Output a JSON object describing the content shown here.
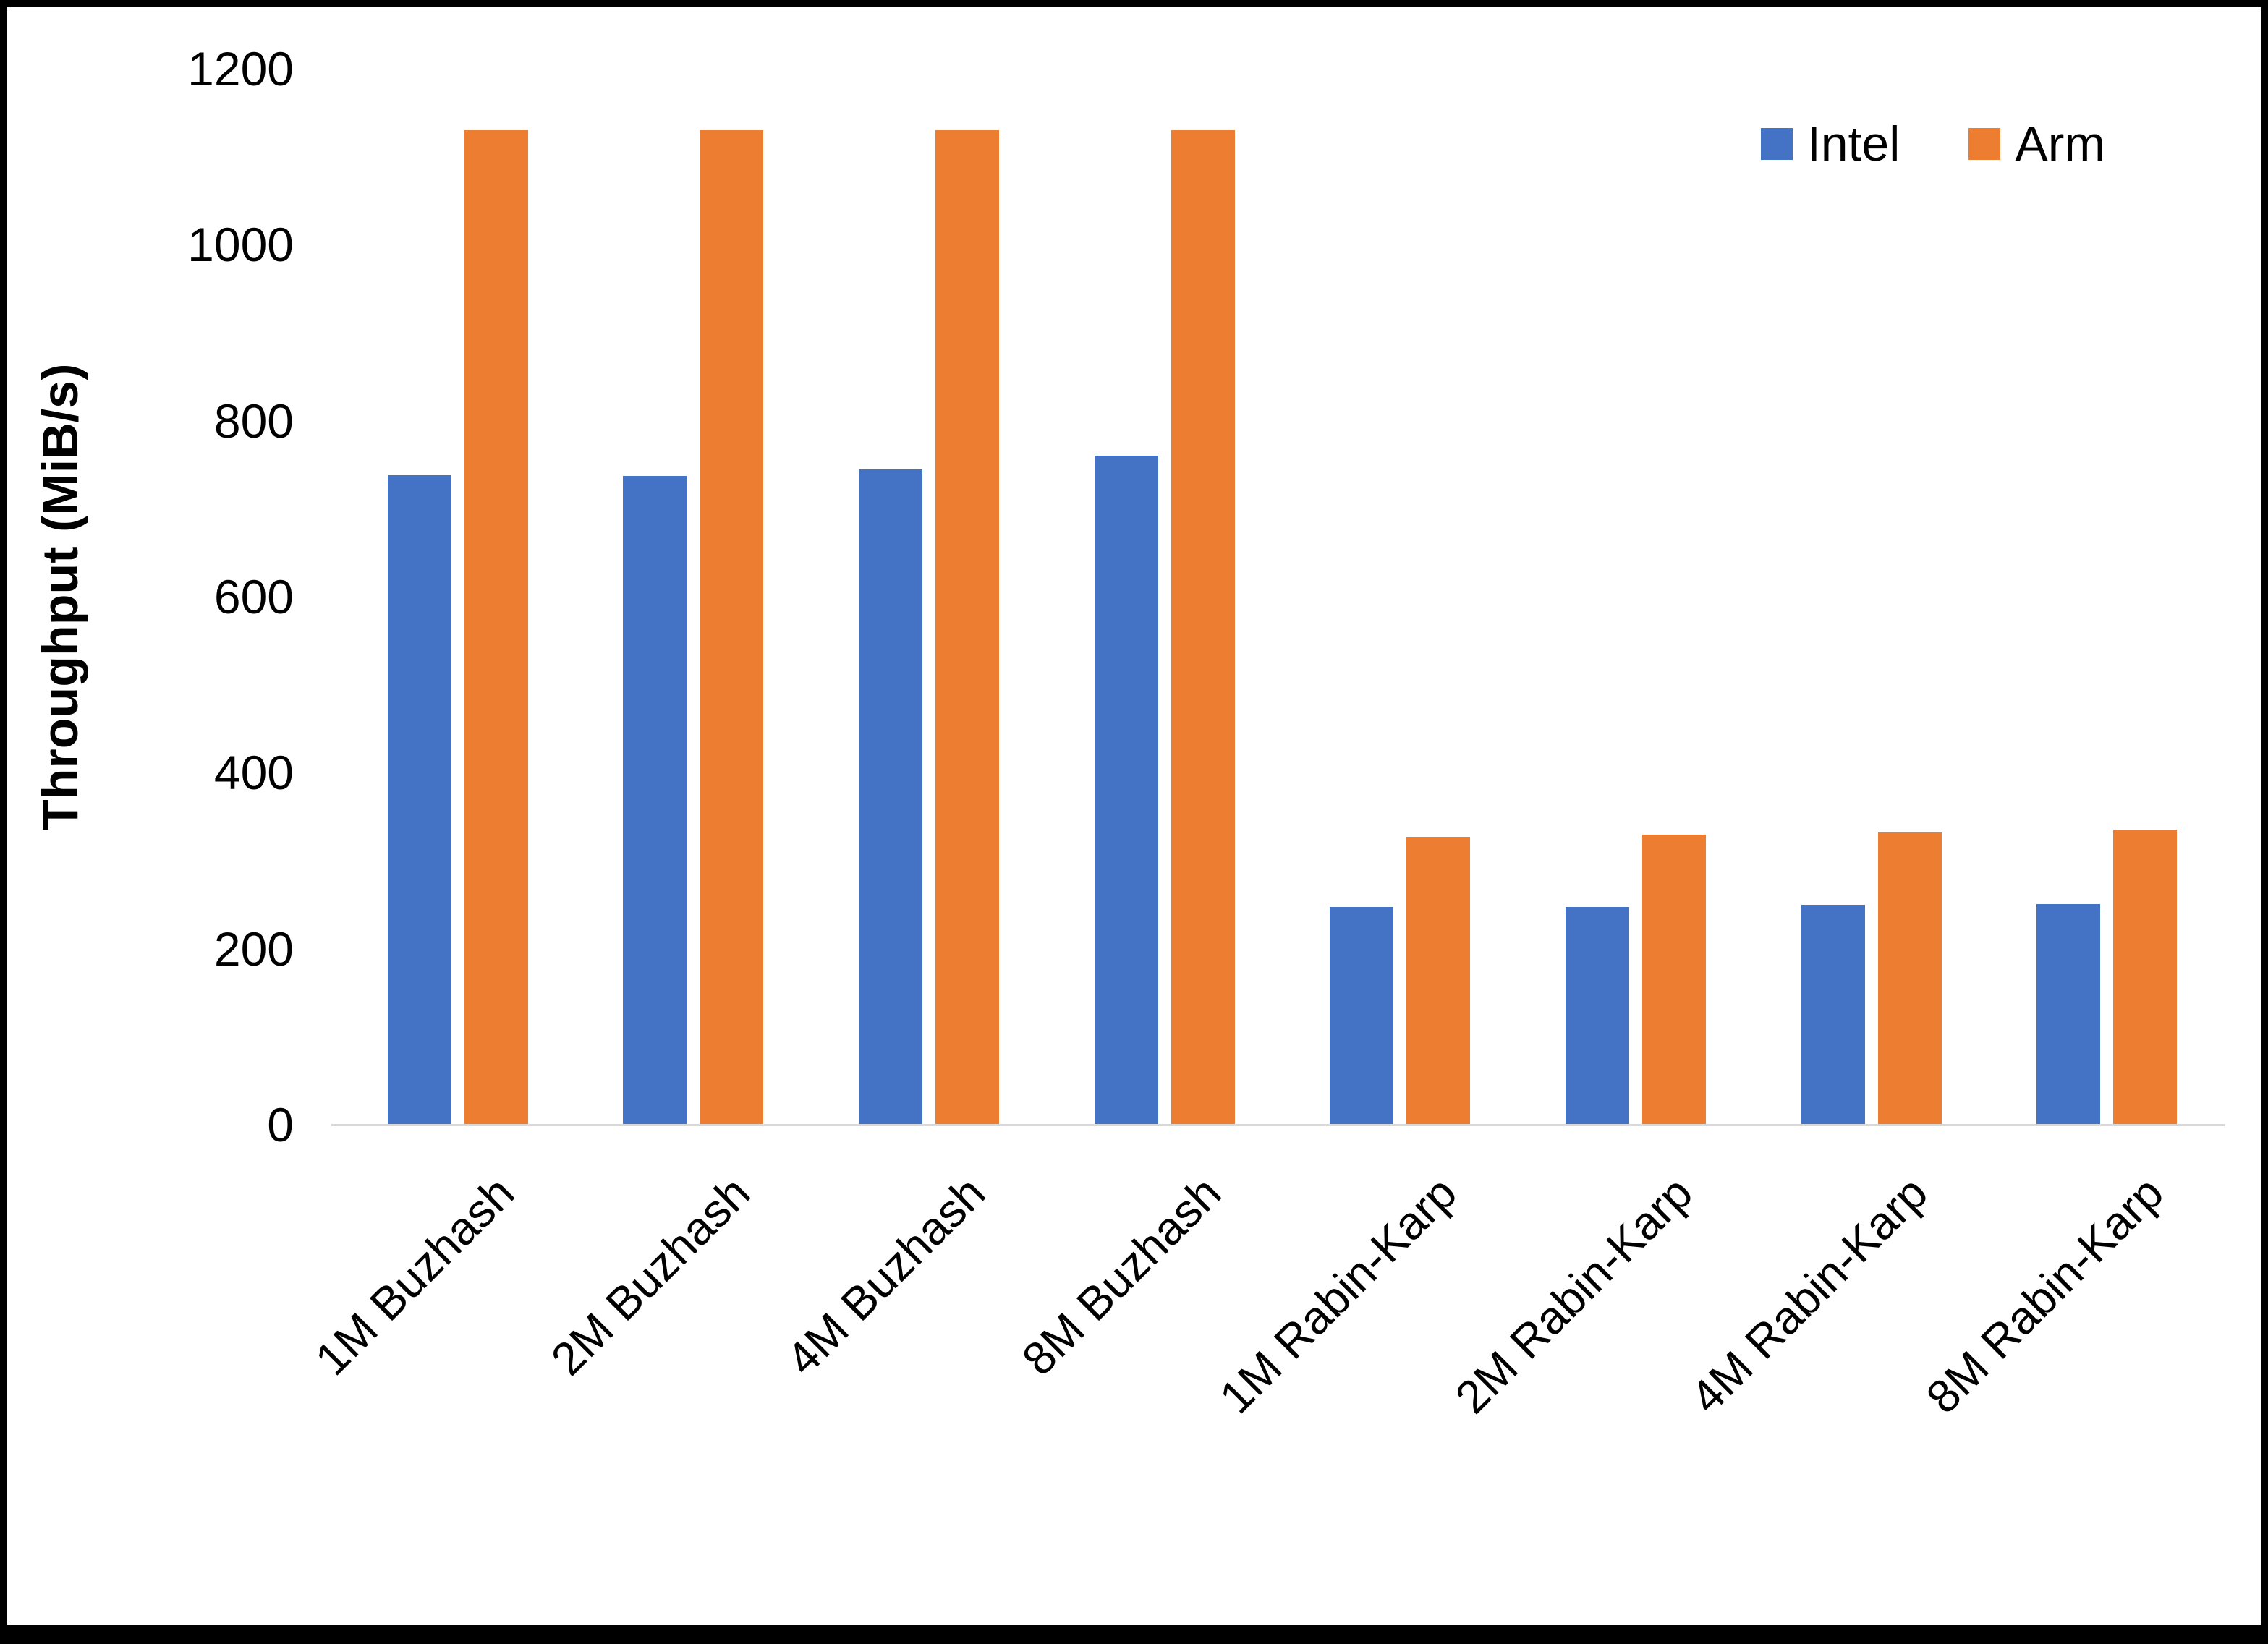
{
  "chart_data": {
    "type": "bar",
    "title": "",
    "xlabel": "",
    "ylabel": "Throughput (MiB/s)",
    "ylim": [
      0,
      1200
    ],
    "yticks": [
      0,
      200,
      400,
      600,
      800,
      1000,
      1200
    ],
    "grid": false,
    "legend_position": "top-right",
    "categories": [
      "1M Buzhash",
      "2M Buzhash",
      "4M Buzhash",
      "8M Buzhash",
      "1M Rabin-Karp",
      "2M Rabin-Karp",
      "4M Rabin-Karp",
      "8M Rabin-Karp"
    ],
    "series": [
      {
        "name": "Intel",
        "color": "#4472C4",
        "values": [
          738,
          737,
          745,
          760,
          247,
          247,
          250,
          251
        ]
      },
      {
        "name": "Arm",
        "color": "#ED7D31",
        "values": [
          1130,
          1130,
          1130,
          1130,
          327,
          330,
          332,
          335
        ]
      }
    ]
  }
}
